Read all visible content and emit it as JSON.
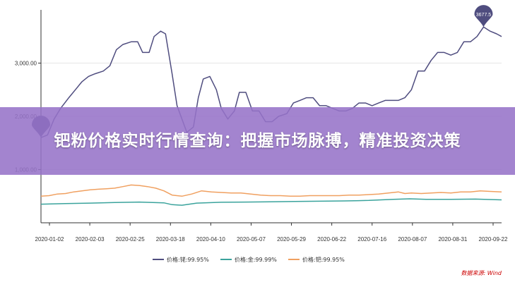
{
  "banner": {
    "title": "钯粉价格实时行情查询：把握市场脉搏，精准投资决策"
  },
  "source": "数据来源: Wind",
  "colors": {
    "s1": "#4f4d7f",
    "s2": "#3aa39c",
    "s3": "#f0a060",
    "banner": "#9673c8"
  },
  "chart_data": {
    "type": "line",
    "title": "",
    "xlabel": "",
    "ylabel": "",
    "ylim": [
      0,
      4000
    ],
    "y_ticks": [
      {
        "value": 1000,
        "label": "1,000.00"
      },
      {
        "value": 2000,
        "label": "2,000.00"
      },
      {
        "value": 3000,
        "label": "3,000.00"
      }
    ],
    "x_ticks": [
      "2020-01-02",
      "2020-02-03",
      "2020-02-25",
      "2020-03-18",
      "2020-04-10",
      "2020-05-07",
      "2020-05-29",
      "2020-06-22",
      "2020-07-16",
      "2020-08-07",
      "2020-08-31",
      "2020-09-22"
    ],
    "legend_position": "bottom",
    "markers": [
      {
        "series": 0,
        "label": "3677.5",
        "type": "max"
      },
      {
        "series": 0,
        "label": "",
        "type": "min"
      }
    ],
    "series": [
      {
        "name": "价格:铑:99.95%",
        "color": "#4f4d7f",
        "values": [
          [
            0,
            1600
          ],
          [
            4,
            1650
          ],
          [
            8,
            1950
          ],
          [
            12,
            2150
          ],
          [
            17,
            2350
          ],
          [
            21,
            2500
          ],
          [
            25,
            2650
          ],
          [
            29,
            2750
          ],
          [
            33,
            2800
          ],
          [
            38,
            2850
          ],
          [
            42,
            2950
          ],
          [
            46,
            3250
          ],
          [
            50,
            3350
          ],
          [
            55,
            3400
          ],
          [
            59,
            3400
          ],
          [
            62,
            3200
          ],
          [
            66,
            3200
          ],
          [
            69,
            3500
          ],
          [
            73,
            3600
          ],
          [
            76,
            3550
          ],
          [
            80,
            2800
          ],
          [
            83,
            2200
          ],
          [
            86,
            1950
          ],
          [
            89,
            1700
          ],
          [
            93,
            1800
          ],
          [
            96,
            2350
          ],
          [
            99,
            2700
          ],
          [
            103,
            2750
          ],
          [
            107,
            2500
          ],
          [
            110,
            2150
          ],
          [
            114,
            1950
          ],
          [
            118,
            2100
          ],
          [
            121,
            2450
          ],
          [
            125,
            2450
          ],
          [
            129,
            2100
          ],
          [
            133,
            2100
          ],
          [
            137,
            1900
          ],
          [
            141,
            1900
          ],
          [
            145,
            2000
          ],
          [
            150,
            2050
          ],
          [
            154,
            2250
          ],
          [
            158,
            2300
          ],
          [
            162,
            2350
          ],
          [
            166,
            2350
          ],
          [
            170,
            2200
          ],
          [
            174,
            2200
          ],
          [
            178,
            2150
          ],
          [
            182,
            2100
          ],
          [
            186,
            2100
          ],
          [
            190,
            2150
          ],
          [
            194,
            2250
          ],
          [
            198,
            2250
          ],
          [
            202,
            2200
          ],
          [
            206,
            2250
          ],
          [
            210,
            2300
          ],
          [
            214,
            2300
          ],
          [
            218,
            2300
          ],
          [
            222,
            2350
          ],
          [
            226,
            2500
          ],
          [
            230,
            2850
          ],
          [
            234,
            2850
          ],
          [
            238,
            3050
          ],
          [
            242,
            3200
          ],
          [
            246,
            3200
          ],
          [
            250,
            3150
          ],
          [
            254,
            3200
          ],
          [
            258,
            3400
          ],
          [
            262,
            3400
          ],
          [
            266,
            3500
          ],
          [
            270,
            3677.5
          ],
          [
            274,
            3600
          ],
          [
            278,
            3550
          ],
          [
            281,
            3500
          ]
        ]
      },
      {
        "name": "价格:金:99.99%",
        "color": "#3aa39c",
        "values": [
          [
            0,
            350
          ],
          [
            15,
            360
          ],
          [
            30,
            370
          ],
          [
            45,
            380
          ],
          [
            60,
            390
          ],
          [
            75,
            375
          ],
          [
            80,
            340
          ],
          [
            86,
            330
          ],
          [
            95,
            370
          ],
          [
            110,
            385
          ],
          [
            125,
            390
          ],
          [
            140,
            395
          ],
          [
            155,
            400
          ],
          [
            170,
            405
          ],
          [
            185,
            410
          ],
          [
            200,
            420
          ],
          [
            215,
            440
          ],
          [
            225,
            450
          ],
          [
            235,
            440
          ],
          [
            250,
            440
          ],
          [
            265,
            445
          ],
          [
            281,
            430
          ]
        ]
      },
      {
        "name": "价格:钯:99.95%",
        "color": "#f0a060",
        "values": [
          [
            0,
            500
          ],
          [
            5,
            510
          ],
          [
            10,
            540
          ],
          [
            15,
            550
          ],
          [
            20,
            580
          ],
          [
            25,
            600
          ],
          [
            30,
            620
          ],
          [
            35,
            630
          ],
          [
            40,
            640
          ],
          [
            45,
            650
          ],
          [
            50,
            680
          ],
          [
            55,
            710
          ],
          [
            60,
            700
          ],
          [
            65,
            680
          ],
          [
            70,
            650
          ],
          [
            75,
            600
          ],
          [
            80,
            520
          ],
          [
            86,
            500
          ],
          [
            92,
            540
          ],
          [
            98,
            600
          ],
          [
            104,
            580
          ],
          [
            110,
            570
          ],
          [
            116,
            560
          ],
          [
            122,
            560
          ],
          [
            128,
            540
          ],
          [
            134,
            520
          ],
          [
            140,
            510
          ],
          [
            146,
            510
          ],
          [
            152,
            500
          ],
          [
            158,
            500
          ],
          [
            164,
            510
          ],
          [
            170,
            510
          ],
          [
            176,
            510
          ],
          [
            182,
            510
          ],
          [
            188,
            520
          ],
          [
            194,
            520
          ],
          [
            200,
            530
          ],
          [
            206,
            540
          ],
          [
            212,
            560
          ],
          [
            218,
            580
          ],
          [
            222,
            550
          ],
          [
            226,
            560
          ],
          [
            232,
            550
          ],
          [
            238,
            560
          ],
          [
            244,
            570
          ],
          [
            250,
            560
          ],
          [
            256,
            580
          ],
          [
            262,
            580
          ],
          [
            268,
            600
          ],
          [
            274,
            590
          ],
          [
            281,
            580
          ]
        ]
      }
    ]
  }
}
